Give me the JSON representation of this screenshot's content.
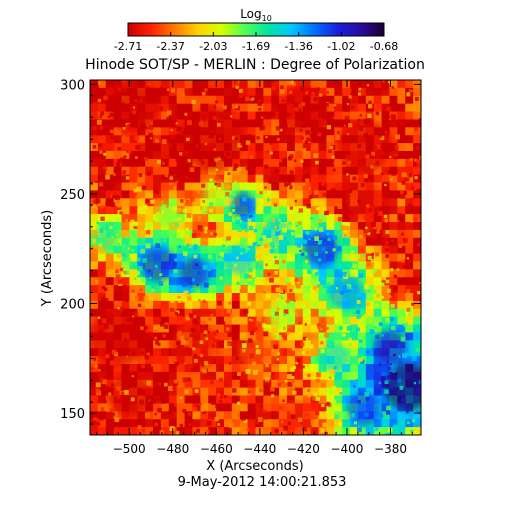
{
  "chart_data": {
    "type": "heatmap",
    "title": "Hinode SOT/SP - MERLIN : Degree of Polarization",
    "colorbar": {
      "label_base": "Log",
      "label_sub": "10",
      "ticks": [
        "-2.71",
        "-2.37",
        "-2.03",
        "-1.69",
        "-1.36",
        "-1.02",
        "-0.68"
      ],
      "range": [
        -2.71,
        -0.68
      ],
      "colormap": [
        "#cc0000",
        "#ff2200",
        "#ff7a00",
        "#ffd200",
        "#d8ff00",
        "#50ff50",
        "#00e6a0",
        "#00c8ff",
        "#0070ff",
        "#1a20e0",
        "#2a0aa0",
        "#1a0030"
      ]
    },
    "xlabel": "X (Arcseconds)",
    "ylabel": "Y (Arcseconds)",
    "xlim": [
      -518,
      -366
    ],
    "ylim": [
      140,
      302
    ],
    "xticks": [
      -500,
      -480,
      -460,
      -440,
      -420,
      -400,
      -380
    ],
    "yticks": [
      150,
      200,
      250,
      300
    ],
    "timestamp": "9-May-2012 14:00:21.853",
    "regions": [
      {
        "x": -498,
        "y": 290,
        "r": 22,
        "value": -2.71
      },
      {
        "x": -462,
        "y": 275,
        "r": 26,
        "value": -2.71
      },
      {
        "x": -420,
        "y": 288,
        "r": 20,
        "value": -2.68
      },
      {
        "x": -392,
        "y": 272,
        "r": 22,
        "value": -2.69
      },
      {
        "x": -505,
        "y": 185,
        "r": 24,
        "value": -2.7
      },
      {
        "x": -470,
        "y": 180,
        "r": 20,
        "value": -2.6
      },
      {
        "x": -500,
        "y": 158,
        "r": 18,
        "value": -2.7
      },
      {
        "x": -440,
        "y": 178,
        "r": 18,
        "value": -2.4
      },
      {
        "x": -423,
        "y": 148,
        "r": 16,
        "value": -2.5
      },
      {
        "x": -392,
        "y": 248,
        "r": 16,
        "value": -2.6
      },
      {
        "x": -487,
        "y": 218,
        "r": 14,
        "value": -1.0
      },
      {
        "x": -470,
        "y": 214,
        "r": 12,
        "value": -0.9
      },
      {
        "x": -448,
        "y": 245,
        "r": 10,
        "value": -1.0
      },
      {
        "x": -450,
        "y": 220,
        "r": 12,
        "value": -1.4
      },
      {
        "x": -432,
        "y": 232,
        "r": 12,
        "value": -1.5
      },
      {
        "x": -412,
        "y": 225,
        "r": 14,
        "value": -1.0
      },
      {
        "x": -400,
        "y": 205,
        "r": 14,
        "value": -1.3
      },
      {
        "x": -372,
        "y": 162,
        "r": 20,
        "value": -0.7
      },
      {
        "x": -380,
        "y": 180,
        "r": 14,
        "value": -0.9
      },
      {
        "x": -392,
        "y": 152,
        "r": 14,
        "value": -1.1
      },
      {
        "x": -405,
        "y": 175,
        "r": 12,
        "value": -1.5
      },
      {
        "x": -510,
        "y": 230,
        "r": 10,
        "value": -1.6
      },
      {
        "x": -430,
        "y": 195,
        "r": 12,
        "value": -1.9
      },
      {
        "x": -460,
        "y": 250,
        "r": 12,
        "value": -1.9
      },
      {
        "x": -482,
        "y": 240,
        "r": 10,
        "value": -1.8
      }
    ]
  }
}
